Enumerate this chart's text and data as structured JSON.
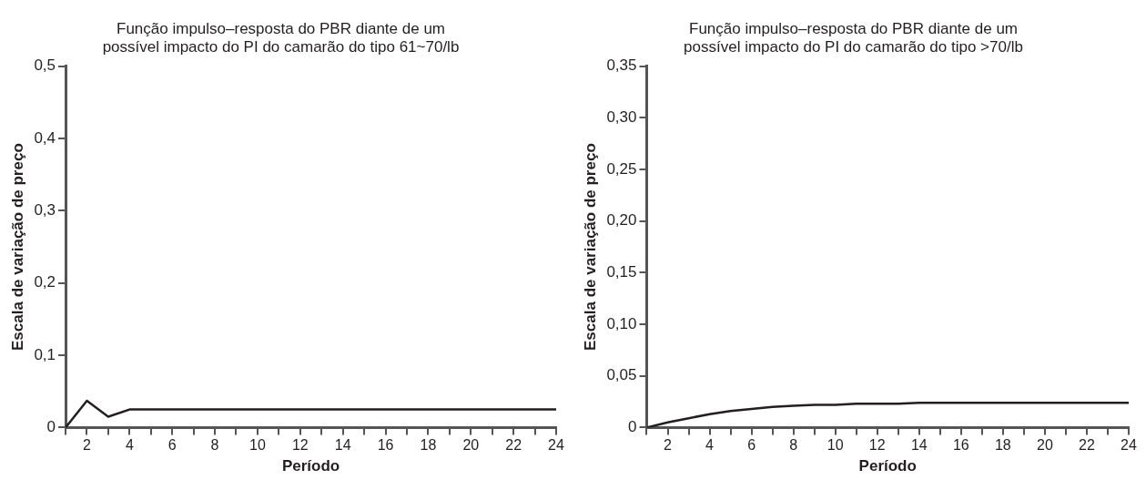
{
  "chart_data": [
    {
      "type": "line",
      "title": [
        "Função impulso–resposta do PBR diante de um",
        "possível impacto do PI do camarão do tipo 61~70/lb"
      ],
      "xlabel": "Período",
      "ylabel": "Escala de variação de preço",
      "x": [
        1,
        2,
        3,
        4,
        5,
        6,
        7,
        8,
        9,
        10,
        11,
        12,
        13,
        14,
        15,
        16,
        17,
        18,
        19,
        20,
        21,
        22,
        23,
        24
      ],
      "series": [
        {
          "color": "#231f20",
          "values": [
            0,
            0.037,
            0.015,
            0.025,
            0.025,
            0.025,
            0.025,
            0.025,
            0.025,
            0.025,
            0.025,
            0.025,
            0.025,
            0.025,
            0.025,
            0.025,
            0.025,
            0.025,
            0.025,
            0.025,
            0.025,
            0.025,
            0.025,
            0.025
          ]
        }
      ],
      "xlim": [
        1,
        24
      ],
      "xticks": [
        {
          "value": 1,
          "label": null
        },
        2,
        {
          "value": 3,
          "label": null
        },
        4,
        {
          "value": 5,
          "label": null
        },
        6,
        {
          "value": 7,
          "label": null
        },
        8,
        {
          "value": 9,
          "label": null
        },
        10,
        {
          "value": 11,
          "label": null
        },
        12,
        {
          "value": 13,
          "label": null
        },
        14,
        {
          "value": 15,
          "label": null
        },
        16,
        {
          "value": 17,
          "label": null
        },
        18,
        {
          "value": 19,
          "label": null
        },
        20,
        {
          "value": 21,
          "label": null
        },
        22,
        {
          "value": 23,
          "label": null
        },
        24
      ],
      "ylim": [
        0,
        0.5
      ],
      "yticks": [
        0,
        {
          "value": 0.1,
          "label": "0,1"
        },
        {
          "value": 0.2,
          "label": "0,2"
        },
        {
          "value": 0.3,
          "label": "0,3"
        },
        {
          "value": 0.4,
          "label": "0,4"
        },
        {
          "value": 0.5,
          "label": "0,5"
        }
      ],
      "grid": false,
      "legend": false,
      "marker": "none",
      "line_style": "solid"
    },
    {
      "type": "line",
      "title": [
        "Função impulso–resposta do PBR diante de um",
        "possível impacto do PI do camarão do tipo >70/lb"
      ],
      "xlabel": "Período",
      "ylabel": "Escala de variação de preço",
      "x": [
        1,
        2,
        3,
        4,
        5,
        6,
        7,
        8,
        9,
        10,
        11,
        12,
        13,
        14,
        15,
        16,
        17,
        18,
        19,
        20,
        21,
        22,
        23,
        24
      ],
      "series": [
        {
          "color": "#231f20",
          "values": [
            0,
            0.005,
            0.009,
            0.013,
            0.016,
            0.018,
            0.02,
            0.021,
            0.022,
            0.022,
            0.023,
            0.023,
            0.023,
            0.024,
            0.024,
            0.024,
            0.024,
            0.024,
            0.024,
            0.024,
            0.024,
            0.024,
            0.024,
            0.024
          ]
        }
      ],
      "xlim": [
        1,
        24
      ],
      "xticks": [
        {
          "value": 1,
          "label": null
        },
        2,
        {
          "value": 3,
          "label": null
        },
        4,
        {
          "value": 5,
          "label": null
        },
        6,
        {
          "value": 7,
          "label": null
        },
        8,
        {
          "value": 9,
          "label": null
        },
        10,
        {
          "value": 11,
          "label": null
        },
        12,
        {
          "value": 13,
          "label": null
        },
        14,
        {
          "value": 15,
          "label": null
        },
        16,
        {
          "value": 17,
          "label": null
        },
        18,
        {
          "value": 19,
          "label": null
        },
        20,
        {
          "value": 21,
          "label": null
        },
        22,
        {
          "value": 23,
          "label": null
        },
        24
      ],
      "ylim": [
        0,
        0.35
      ],
      "yticks": [
        0,
        {
          "value": 0.05,
          "label": "0,05"
        },
        {
          "value": 0.1,
          "label": "0,10"
        },
        {
          "value": 0.15,
          "label": "0,15"
        },
        {
          "value": 0.2,
          "label": "0,20"
        },
        {
          "value": 0.25,
          "label": "0,25"
        },
        {
          "value": 0.3,
          "label": "0,30"
        },
        {
          "value": 0.35,
          "label": "0,35"
        }
      ],
      "grid": false,
      "legend": false,
      "marker": "none",
      "line_style": "solid"
    }
  ]
}
